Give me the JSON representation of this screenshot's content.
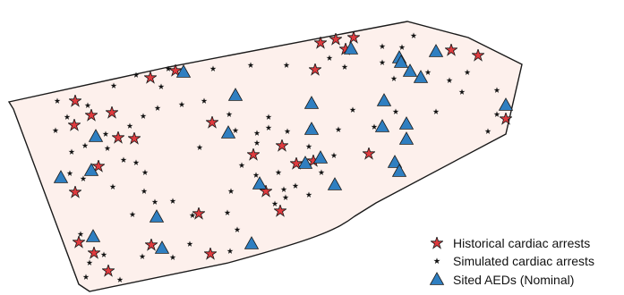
{
  "colors": {
    "region_fill": "#fdf0ec",
    "region_stroke": "#1a1a1a",
    "historical": "#e03a3e",
    "simulated": "#111111",
    "aed": "#2f7fc1"
  },
  "legend": {
    "historical": {
      "label": "Historical cardiac arrests",
      "icon": "red-star-icon"
    },
    "simulated": {
      "label": "Simulated cardiac arrests",
      "icon": "black-star-icon"
    },
    "aed": {
      "label": "Sited AEDs (Nominal)",
      "icon": "blue-triangle-icon"
    }
  },
  "map_data": {
    "historical_arrests": [
      [
        196,
        79
      ],
      [
        168,
        87
      ],
      [
        84,
        113
      ],
      [
        102,
        129
      ],
      [
        125,
        126
      ],
      [
        83,
        140
      ],
      [
        132,
        154
      ],
      [
        150,
        155
      ],
      [
        237,
        137
      ],
      [
        315,
        163
      ],
      [
        283,
        173
      ],
      [
        110,
        186
      ],
      [
        352,
        78
      ],
      [
        358,
        48
      ],
      [
        375,
        44
      ],
      [
        395,
        42
      ],
      [
        386,
        55
      ],
      [
        504,
        56
      ],
      [
        534,
        62
      ],
      [
        565,
        133
      ],
      [
        412,
        172
      ],
      [
        331,
        183
      ],
      [
        350,
        180
      ],
      [
        297,
        214
      ],
      [
        222,
        239
      ],
      [
        313,
        236
      ],
      [
        84,
        215
      ],
      [
        88,
        271
      ],
      [
        105,
        283
      ],
      [
        169,
        274
      ],
      [
        235,
        284
      ],
      [
        121,
        303
      ]
    ],
    "simulated_arrests": [
      [
        64,
        113
      ],
      [
        75,
        131
      ],
      [
        98,
        118
      ],
      [
        127,
        96
      ],
      [
        152,
        84
      ],
      [
        180,
        97
      ],
      [
        188,
        77
      ],
      [
        238,
        77
      ],
      [
        280,
        73
      ],
      [
        320,
        73
      ],
      [
        368,
        65
      ],
      [
        385,
        75
      ],
      [
        427,
        52
      ],
      [
        427,
        70
      ],
      [
        462,
        40
      ],
      [
        449,
        53
      ],
      [
        440,
        88
      ],
      [
        478,
        81
      ],
      [
        502,
        90
      ],
      [
        522,
        81
      ],
      [
        516,
        103
      ],
      [
        555,
        101
      ],
      [
        555,
        128
      ],
      [
        545,
        147
      ],
      [
        487,
        125
      ],
      [
        442,
        125
      ],
      [
        418,
        142
      ],
      [
        378,
        145
      ],
      [
        394,
        123
      ],
      [
        348,
        142
      ],
      [
        321,
        147
      ],
      [
        300,
        131
      ],
      [
        287,
        149
      ],
      [
        256,
        128
      ],
      [
        263,
        146
      ],
      [
        228,
        113
      ],
      [
        203,
        117
      ],
      [
        176,
        121
      ],
      [
        160,
        130
      ],
      [
        145,
        141
      ],
      [
        118,
        150
      ],
      [
        138,
        179
      ],
      [
        152,
        182
      ],
      [
        162,
        193
      ],
      [
        120,
        166
      ],
      [
        95,
        163
      ],
      [
        80,
        170
      ],
      [
        78,
        194
      ],
      [
        93,
        200
      ],
      [
        126,
        209
      ],
      [
        161,
        214
      ],
      [
        148,
        240
      ],
      [
        173,
        226
      ],
      [
        193,
        225
      ],
      [
        254,
        238
      ],
      [
        215,
        241
      ],
      [
        258,
        214
      ],
      [
        286,
        196
      ],
      [
        270,
        185
      ],
      [
        311,
        193
      ],
      [
        317,
        212
      ],
      [
        330,
        208
      ],
      [
        345,
        218
      ],
      [
        307,
        228
      ],
      [
        319,
        221
      ],
      [
        359,
        193
      ],
      [
        373,
        174
      ],
      [
        345,
        164
      ],
      [
        265,
        257
      ],
      [
        257,
        281
      ],
      [
        212,
        273
      ],
      [
        193,
        288
      ],
      [
        159,
        287
      ],
      [
        90,
        262
      ],
      [
        100,
        294
      ],
      [
        96,
        310
      ],
      [
        134,
        313
      ],
      [
        116,
        285
      ],
      [
        62,
        146
      ],
      [
        223,
        165
      ],
      [
        287,
        160
      ],
      [
        300,
        143
      ]
    ],
    "aeds": [
      [
        205,
        81
      ],
      [
        263,
        107
      ],
      [
        348,
        116
      ],
      [
        348,
        145
      ],
      [
        255,
        149
      ],
      [
        107,
        153
      ],
      [
        102,
        191
      ],
      [
        68,
        199
      ],
      [
        175,
        243
      ],
      [
        104,
        265
      ],
      [
        181,
        278
      ],
      [
        281,
        273
      ],
      [
        290,
        206
      ],
      [
        341,
        183
      ],
      [
        358,
        177
      ],
      [
        374,
        207
      ],
      [
        429,
        113
      ],
      [
        427,
        142
      ],
      [
        454,
        139
      ],
      [
        454,
        156
      ],
      [
        441,
        182
      ],
      [
        446,
        192
      ],
      [
        446,
        65
      ],
      [
        448,
        70
      ],
      [
        392,
        55
      ],
      [
        487,
        58
      ],
      [
        458,
        80
      ],
      [
        470,
        87
      ],
      [
        565,
        118
      ]
    ]
  }
}
